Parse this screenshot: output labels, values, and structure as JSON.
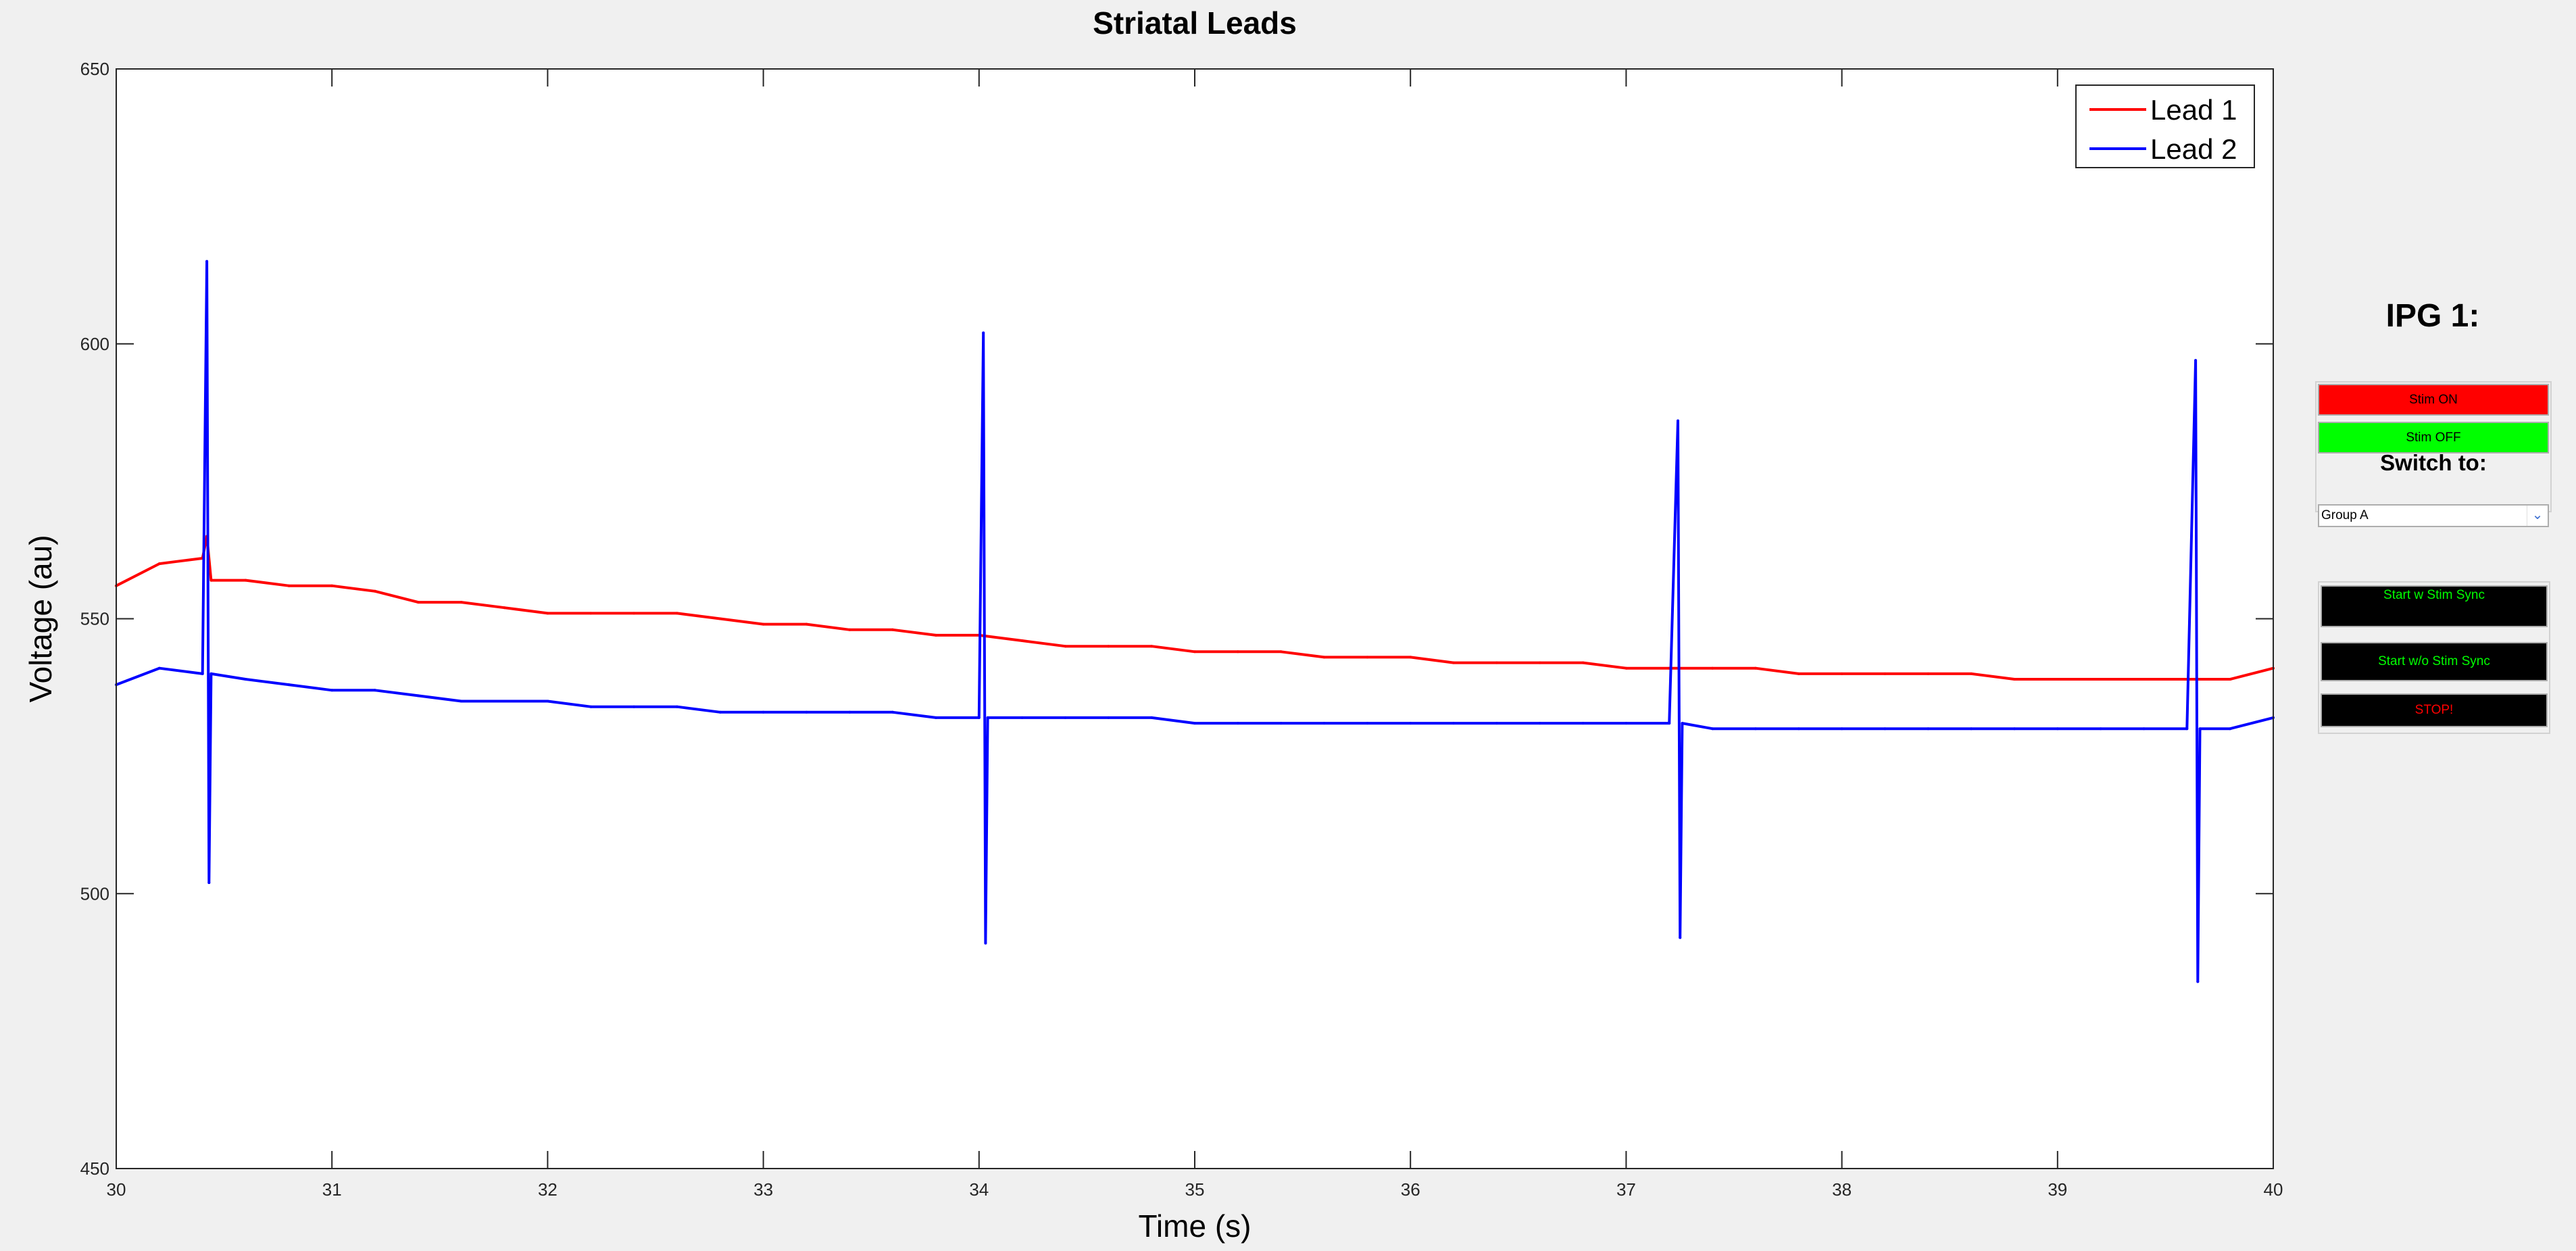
{
  "chart_data": {
    "type": "line",
    "title": "Striatal Leads",
    "xlabel": "Time (s)",
    "ylabel": "Voltage (au)",
    "xlim": [
      30,
      40
    ],
    "ylim": [
      450,
      650
    ],
    "xticks": [
      30,
      31,
      32,
      33,
      34,
      35,
      36,
      37,
      38,
      39,
      40
    ],
    "yticks": [
      450,
      500,
      550,
      600,
      650
    ],
    "legend_position": "top-right",
    "grid": false,
    "series": [
      {
        "name": "Lead 1",
        "color": "#ff0000",
        "x": [
          30.0,
          30.2,
          30.4,
          30.42,
          30.44,
          30.6,
          30.8,
          31.0,
          31.2,
          31.4,
          31.6,
          31.8,
          32.0,
          32.2,
          32.4,
          32.6,
          32.8,
          33.0,
          33.2,
          33.4,
          33.6,
          33.8,
          34.0,
          34.2,
          34.4,
          34.6,
          34.8,
          35.0,
          35.2,
          35.4,
          35.6,
          35.8,
          36.0,
          36.2,
          36.4,
          36.6,
          36.8,
          37.0,
          37.2,
          37.4,
          37.6,
          37.8,
          38.0,
          38.2,
          38.4,
          38.6,
          38.8,
          39.0,
          39.2,
          39.4,
          39.6,
          39.8,
          40.0
        ],
        "y": [
          556,
          560,
          561,
          565,
          557,
          557,
          556,
          556,
          555,
          553,
          553,
          552,
          551,
          551,
          551,
          551,
          550,
          549,
          549,
          548,
          548,
          547,
          547,
          546,
          545,
          545,
          545,
          544,
          544,
          544,
          543,
          543,
          543,
          542,
          542,
          542,
          542,
          541,
          541,
          541,
          541,
          540,
          540,
          540,
          540,
          540,
          539,
          539,
          539,
          539,
          539,
          539,
          541
        ]
      },
      {
        "name": "Lead 2",
        "color": "#0000ff",
        "x": [
          30.0,
          30.2,
          30.4,
          30.42,
          30.43,
          30.44,
          30.6,
          30.8,
          31.0,
          31.2,
          31.4,
          31.6,
          31.8,
          32.0,
          32.2,
          32.4,
          32.6,
          32.8,
          33.0,
          33.2,
          33.4,
          33.6,
          33.8,
          34.0,
          34.02,
          34.03,
          34.04,
          34.2,
          34.4,
          34.6,
          34.8,
          35.0,
          35.2,
          35.4,
          35.6,
          35.8,
          36.0,
          36.2,
          36.4,
          36.6,
          36.8,
          37.0,
          37.2,
          37.24,
          37.25,
          37.26,
          37.4,
          37.6,
          37.8,
          38.0,
          38.2,
          38.4,
          38.6,
          38.8,
          39.0,
          39.2,
          39.4,
          39.6,
          39.64,
          39.65,
          39.66,
          39.8,
          40.0
        ],
        "y": [
          538,
          541,
          540,
          615,
          502,
          540,
          539,
          538,
          537,
          537,
          536,
          535,
          535,
          535,
          534,
          534,
          534,
          533,
          533,
          533,
          533,
          533,
          532,
          532,
          602,
          491,
          532,
          532,
          532,
          532,
          532,
          531,
          531,
          531,
          531,
          531,
          531,
          531,
          531,
          531,
          531,
          531,
          531,
          586,
          492,
          531,
          530,
          530,
          530,
          530,
          530,
          530,
          530,
          530,
          530,
          530,
          530,
          530,
          597,
          484,
          530,
          530,
          532
        ]
      }
    ]
  },
  "side_panel": {
    "ipg_title": "IPG 1:",
    "stim_on_label": "Stim ON",
    "stim_off_label": "Stim OFF",
    "switch_to_label": "Switch to:",
    "group_selected": "Group A",
    "start_sync_label": "Start w Stim Sync",
    "start_no_sync_label": "Start w/o Stim Sync",
    "stop_label": "STOP!"
  },
  "colors": {
    "stim_on": "#ff0000",
    "stim_off": "#00ff00",
    "start_btn_bg": "#000000",
    "start_btn_text": "#00ff00",
    "stop_text": "#ff0000"
  }
}
